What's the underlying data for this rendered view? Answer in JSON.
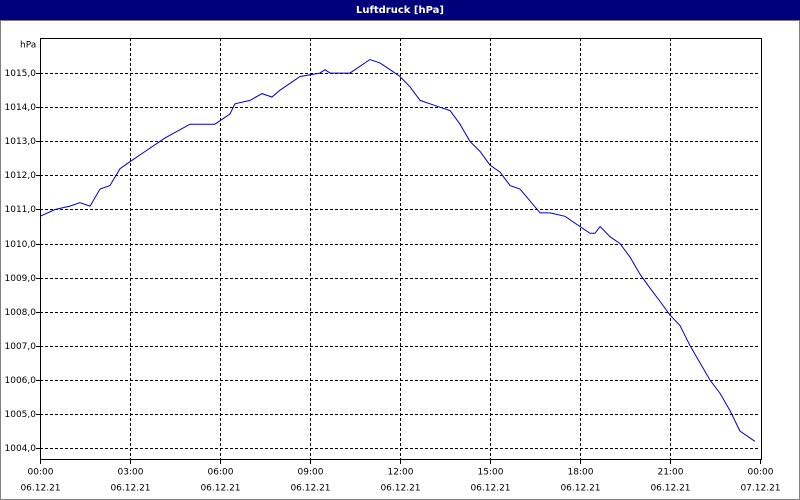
{
  "chart_data": {
    "type": "line",
    "title": "Luftdruck [hPa]",
    "y_label": "hPa",
    "x": [
      0,
      0.5,
      1,
      1.33,
      1.67,
      2,
      2.33,
      2.67,
      3,
      3.5,
      4.17,
      4.17,
      5,
      5.83,
      6.33,
      6.5,
      7,
      7.4,
      7.73,
      8,
      8.67,
      9.33,
      9.5,
      9.67,
      10.33,
      11,
      11.33,
      11.67,
      12,
      12.33,
      12.67,
      13,
      13.33,
      13.67,
      14,
      14.33,
      14.67,
      15,
      15.33,
      15.67,
      16,
      16.67,
      17,
      17.5,
      18.33,
      18.5,
      18.67,
      19,
      19.33,
      19.67,
      20,
      20.33,
      20.67,
      21,
      21.33,
      21.67,
      22,
      22.33,
      22.67,
      23,
      23.33,
      23.83
    ],
    "series": [
      {
        "name": "Luftdruck",
        "color": "#0000cc",
        "values": [
          1010.8,
          1011.0,
          1011.1,
          1011.2,
          1011.1,
          1011.6,
          1011.7,
          1012.2,
          1012.4,
          1012.7,
          1013.1,
          1013.1,
          1013.5,
          1013.5,
          1013.8,
          1014.1,
          1014.2,
          1014.4,
          1014.3,
          1014.5,
          1014.9,
          1015.0,
          1015.1,
          1015.0,
          1015.0,
          1015.4,
          1015.3,
          1015.1,
          1014.9,
          1014.6,
          1014.2,
          1014.1,
          1014.0,
          1013.9,
          1013.5,
          1013.0,
          1012.7,
          1012.3,
          1012.1,
          1011.7,
          1011.6,
          1010.9,
          1010.9,
          1010.8,
          1010.3,
          1010.3,
          1010.5,
          1010.2,
          1010.0,
          1009.6,
          1009.1,
          1008.7,
          1008.3,
          1007.9,
          1007.6,
          1007.0,
          1006.5,
          1006.0,
          1005.6,
          1005.1,
          1004.5,
          1004.2
        ]
      }
    ],
    "xlim": [
      0,
      24
    ],
    "xticks": [
      {
        "value": 0,
        "label": "00:00"
      },
      {
        "value": 3,
        "label": "03:00"
      },
      {
        "value": 6,
        "label": "06:00"
      },
      {
        "value": 9,
        "label": "09:00"
      },
      {
        "value": 12,
        "label": "12:00"
      },
      {
        "value": 15,
        "label": "15:00"
      },
      {
        "value": 18,
        "label": "18:00"
      },
      {
        "value": 21,
        "label": "21:00"
      },
      {
        "value": 24,
        "label": "00:00"
      }
    ],
    "xtick_dates": [
      "06.12.21",
      "06.12.21",
      "06.12.21",
      "06.12.21",
      "06.12.21",
      "06.12.21",
      "06.12.21",
      "06.12.21",
      "07.12.21"
    ],
    "ylim": [
      1003.65,
      1016.03
    ],
    "yticks": [
      {
        "value": 1004,
        "label": "1004,0"
      },
      {
        "value": 1005,
        "label": "1005,0"
      },
      {
        "value": 1006,
        "label": "1006,0"
      },
      {
        "value": 1007,
        "label": "1007,0"
      },
      {
        "value": 1008,
        "label": "1008,0"
      },
      {
        "value": 1009,
        "label": "1009,0"
      },
      {
        "value": 1010,
        "label": "1010,0"
      },
      {
        "value": 1011,
        "label": "1011,0"
      },
      {
        "value": 1012,
        "label": "1012,0"
      },
      {
        "value": 1013,
        "label": "1013,0"
      },
      {
        "value": 1014,
        "label": "1014,0"
      },
      {
        "value": 1015,
        "label": "1015,0"
      }
    ],
    "grid": true
  }
}
